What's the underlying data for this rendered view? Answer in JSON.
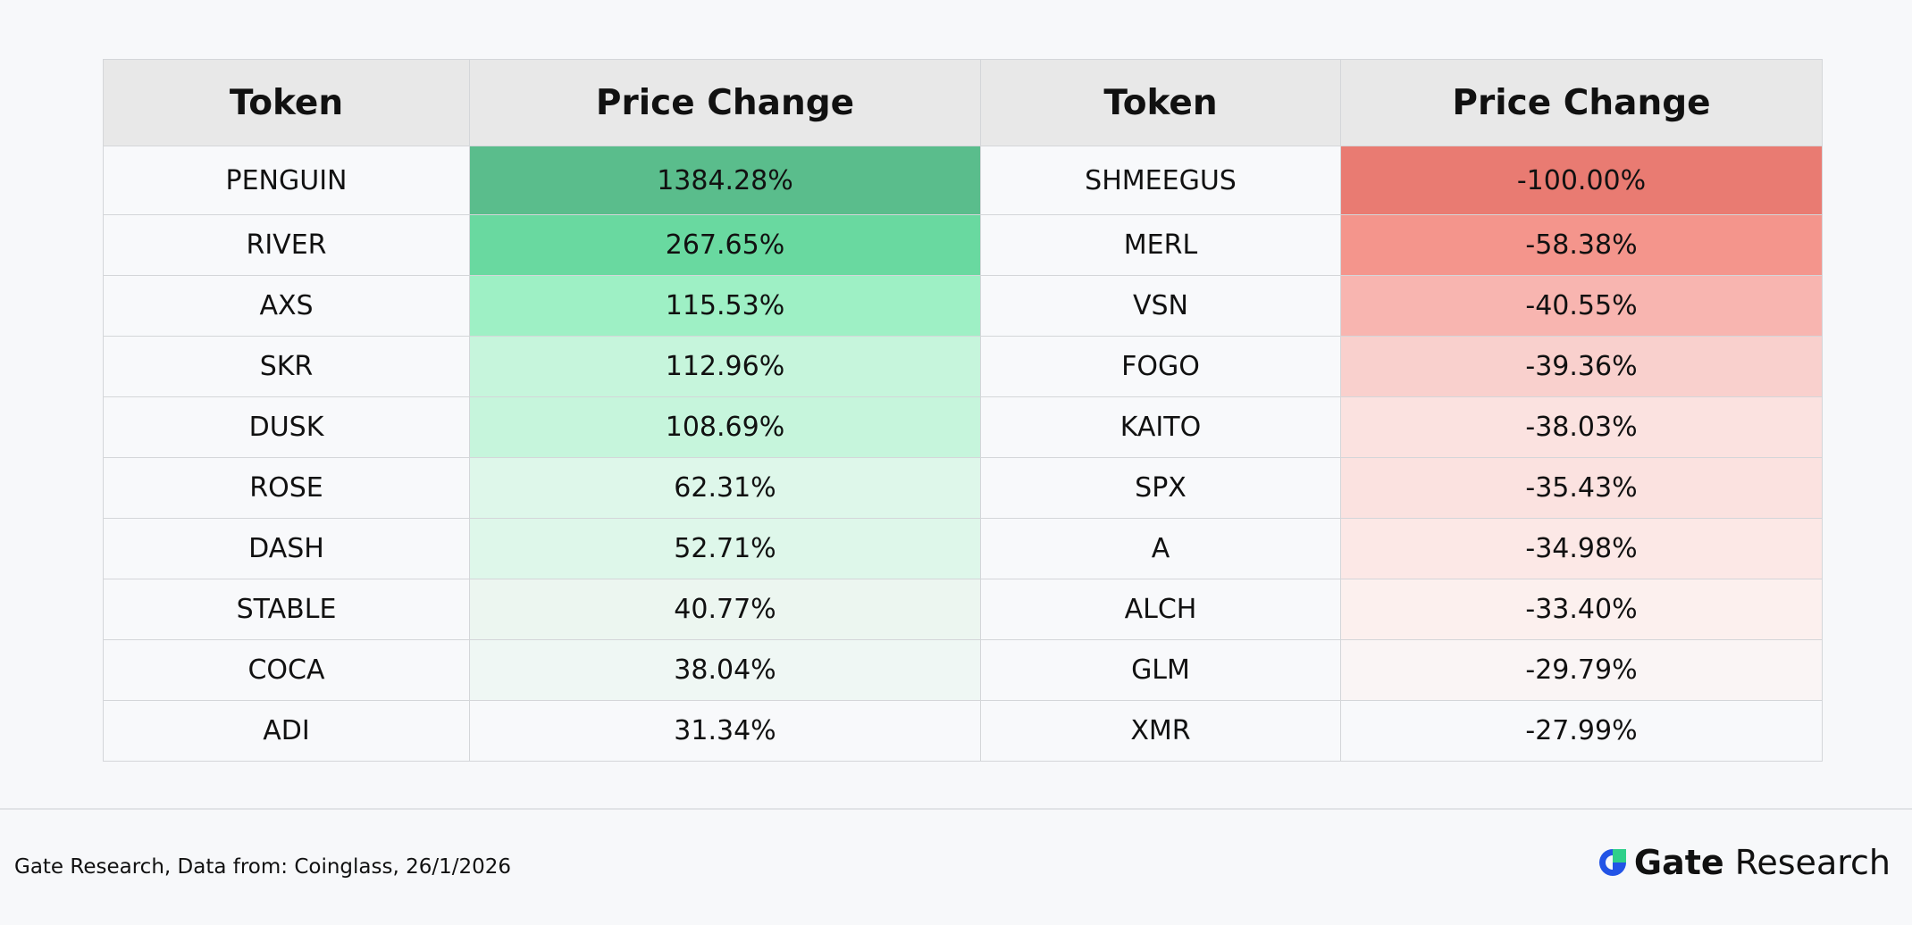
{
  "table": {
    "headers": [
      "Token",
      "Price Change",
      "Token",
      "Price Change"
    ],
    "rows": [
      [
        "PENGUIN",
        "1384.28%",
        "SHMEEGUS",
        "-100.00%"
      ],
      [
        "RIVER",
        "267.65%",
        "MERL",
        "-58.38%"
      ],
      [
        "AXS",
        "115.53%",
        "VSN",
        "-40.55%"
      ],
      [
        "SKR",
        "112.96%",
        "FOGO",
        "-39.36%"
      ],
      [
        "DUSK",
        "108.69%",
        "KAITO",
        "-38.03%"
      ],
      [
        "ROSE",
        "62.31%",
        "SPX",
        "-35.43%"
      ],
      [
        "DASH",
        "52.71%",
        "A",
        "-34.98%"
      ],
      [
        "STABLE",
        "40.77%",
        "ALCH",
        "-33.40%"
      ],
      [
        "COCA",
        "38.04%",
        "GLM",
        "-29.79%"
      ],
      [
        "ADI",
        "31.34%",
        "XMR",
        "-27.99%"
      ]
    ]
  },
  "footer": {
    "source": "Gate Research, Data from: Coinglass, 26/1/2026",
    "logo_brand": "Gate",
    "logo_text": "Research"
  }
}
